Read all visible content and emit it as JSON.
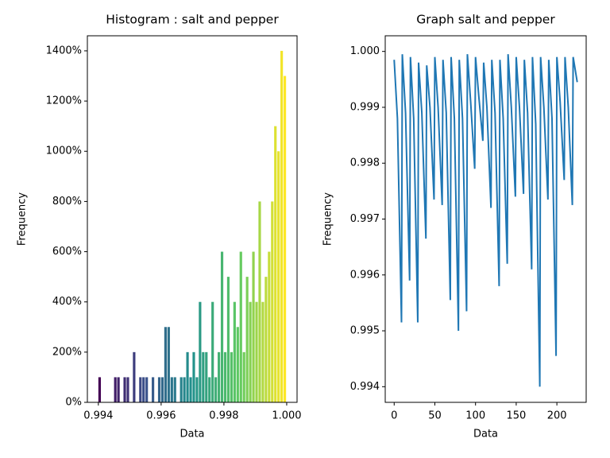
{
  "chart_data": [
    {
      "type": "histogram",
      "title": "Histogram : salt and pepper",
      "x_label": "Data",
      "y_label": "Frequency",
      "bins": [
        0.994,
        0.9941,
        0.9942,
        0.9943,
        0.9944,
        0.9945,
        0.9946,
        0.9947,
        0.9948,
        0.9949,
        0.995,
        0.9951,
        0.9952,
        0.9953,
        0.9954,
        0.9955,
        0.9956,
        0.9957,
        0.9958,
        0.9959,
        0.996,
        0.9961,
        0.9962,
        0.9963,
        0.9964,
        0.9965,
        0.9966,
        0.9967,
        0.9968,
        0.9969,
        0.997,
        0.9971,
        0.9972,
        0.9973,
        0.9974,
        0.9975,
        0.9976,
        0.9977,
        0.9978,
        0.9979,
        0.998,
        0.9981,
        0.9982,
        0.9983,
        0.9984,
        0.9985,
        0.9986,
        0.9987,
        0.9988,
        0.9989,
        0.999,
        0.9991,
        0.9992,
        0.9993,
        0.9994,
        0.9995,
        0.9996,
        0.9997,
        0.9998,
        0.9999,
        1.0
      ],
      "values": [
        100,
        0,
        0,
        0,
        0,
        100,
        100,
        0,
        100,
        100,
        0,
        200,
        0,
        100,
        100,
        100,
        0,
        100,
        0,
        100,
        100,
        300,
        300,
        100,
        100,
        0,
        100,
        100,
        200,
        100,
        200,
        100,
        400,
        200,
        200,
        100,
        400,
        100,
        200,
        600,
        200,
        500,
        200,
        400,
        300,
        600,
        200,
        500,
        400,
        600,
        400,
        800,
        400,
        500,
        600,
        800,
        1100,
        1000,
        1400,
        1300
      ],
      "colormap": [
        "#440154",
        "#3b528b",
        "#21918c",
        "#5ec962",
        "#fde725"
      ],
      "xlim": [
        0.99365,
        1.00033
      ],
      "xticks": [
        0.994,
        0.996,
        0.998,
        {
          "value": 1.0,
          "label": "1.000"
        }
      ],
      "ylim": [
        0,
        1460
      ],
      "yticks": [
        {
          "value": 0,
          "label": "0%"
        },
        {
          "value": 200,
          "label": "200%"
        },
        {
          "value": 400,
          "label": "400%"
        },
        {
          "value": 600,
          "label": "600%"
        },
        {
          "value": 800,
          "label": "800%"
        },
        {
          "value": 1000,
          "label": "1000%"
        },
        {
          "value": 1200,
          "label": "1200%"
        },
        {
          "value": 1400,
          "label": "1400%"
        }
      ]
    },
    {
      "type": "line",
      "title": "Graph salt and pepper",
      "x_label": "Data",
      "y_label": "Frequency",
      "color": "#1f77b4",
      "x": [
        0,
        4,
        9,
        10,
        14,
        19,
        20,
        24,
        29,
        30,
        34,
        39,
        40,
        44,
        49,
        50,
        54,
        59,
        60,
        64,
        69,
        70,
        74,
        79,
        80,
        84,
        89,
        90,
        94,
        99,
        100,
        104,
        109,
        110,
        114,
        119,
        120,
        124,
        129,
        130,
        134,
        139,
        140,
        144,
        149,
        150,
        154,
        159,
        160,
        164,
        169,
        170,
        174,
        179,
        180,
        184,
        189,
        190,
        194,
        199,
        200,
        204,
        209,
        210,
        214,
        219,
        220,
        225
      ],
      "values": [
        0.99985,
        0.9988,
        0.99515,
        0.99995,
        0.9989,
        0.9959,
        0.9999,
        0.9988,
        0.99515,
        0.9998,
        0.9989,
        0.99665,
        0.99975,
        0.999,
        0.99735,
        0.9999,
        0.999,
        0.99725,
        0.99985,
        0.9989,
        0.99555,
        0.9999,
        0.9988,
        0.995,
        0.99985,
        0.9988,
        0.99535,
        0.99995,
        0.9991,
        0.9979,
        0.9999,
        0.9992,
        0.9984,
        0.9998,
        0.999,
        0.9972,
        0.99985,
        0.9989,
        0.9958,
        0.99985,
        0.9988,
        0.9962,
        0.99995,
        0.999,
        0.9974,
        0.9999,
        0.999,
        0.99745,
        0.99985,
        0.9989,
        0.9961,
        0.9999,
        0.9987,
        0.994,
        0.9999,
        0.999,
        0.99735,
        0.99985,
        0.9988,
        0.99455,
        0.9999,
        0.9991,
        0.9977,
        0.9999,
        0.999,
        0.99725,
        0.9999,
        0.99945
      ],
      "xlim": [
        -11,
        236
      ],
      "xticks": [
        0,
        50,
        100,
        150,
        200
      ],
      "ylim": [
        0.99372,
        1.00028
      ],
      "yticks": [
        0.994,
        0.995,
        0.996,
        0.997,
        0.998,
        0.999,
        {
          "value": 1.0,
          "label": "1.000"
        }
      ]
    }
  ]
}
